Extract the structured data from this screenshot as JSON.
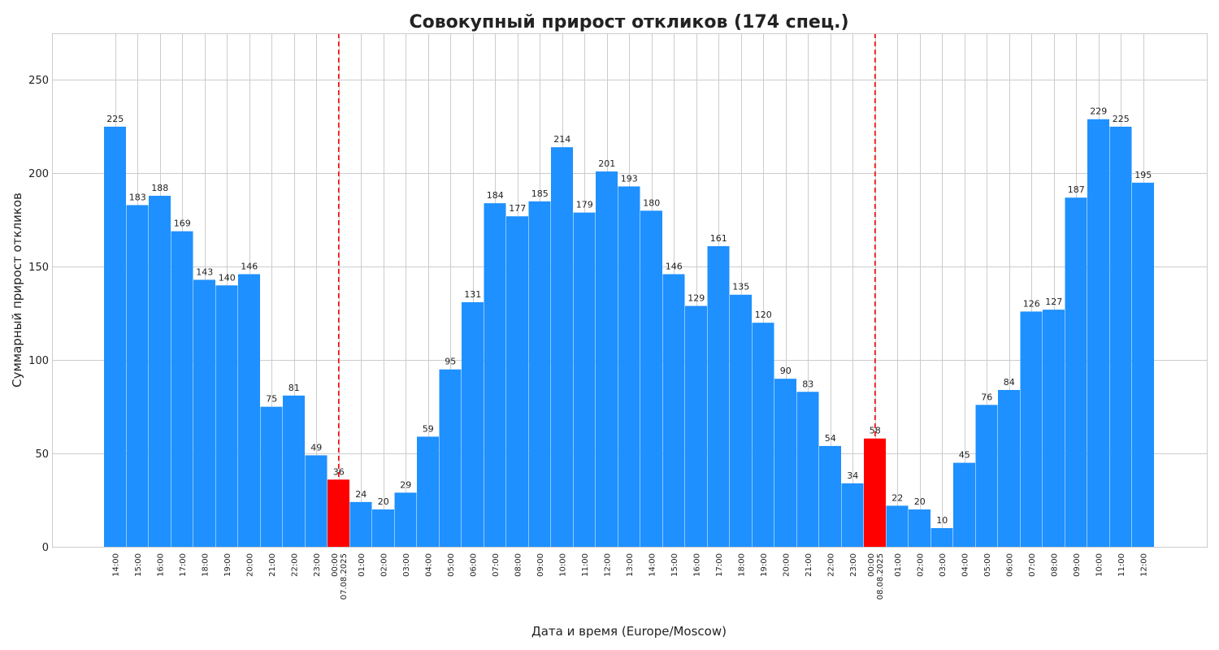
{
  "chart_data": {
    "type": "bar",
    "title": "Совокупный прирост откликов (174 спец.)",
    "xlabel": "Дата и время (Europe/Moscow)",
    "ylabel": "Суммарный прирост откликов",
    "ylim": [
      0,
      275
    ],
    "yticks": [
      0,
      50,
      100,
      150,
      200,
      250
    ],
    "grid": true,
    "categories": [
      "14:00",
      "15:00",
      "16:00",
      "17:00",
      "18:00",
      "19:00",
      "20:00",
      "21:00",
      "22:00",
      "23:00",
      "00:00\n07.08.2025",
      "01:00",
      "02:00",
      "03:00",
      "04:00",
      "05:00",
      "06:00",
      "07:00",
      "08:00",
      "09:00",
      "10:00",
      "11:00",
      "12:00",
      "13:00",
      "14:00",
      "15:00",
      "16:00",
      "17:00",
      "18:00",
      "19:00",
      "20:00",
      "21:00",
      "22:00",
      "23:00",
      "00:00\n08.08.2025",
      "01:00",
      "02:00",
      "03:00",
      "04:00",
      "05:00",
      "06:00",
      "07:00",
      "08:00",
      "09:00",
      "10:00",
      "11:00",
      "12:00"
    ],
    "values": [
      225,
      183,
      188,
      169,
      143,
      140,
      146,
      75,
      81,
      49,
      36,
      24,
      20,
      29,
      59,
      95,
      131,
      184,
      177,
      185,
      214,
      179,
      201,
      193,
      180,
      146,
      129,
      161,
      135,
      120,
      90,
      83,
      54,
      34,
      58,
      22,
      20,
      10,
      45,
      76,
      84,
      126,
      127,
      187,
      229,
      225,
      195
    ],
    "midnight_indices": [
      10,
      34
    ],
    "colors": {
      "bar": "#1e90ff",
      "midnight_bar": "#ff0000",
      "day_marker": "#ff0000",
      "grid": "#cccccc",
      "frame": "#cccccc"
    }
  }
}
